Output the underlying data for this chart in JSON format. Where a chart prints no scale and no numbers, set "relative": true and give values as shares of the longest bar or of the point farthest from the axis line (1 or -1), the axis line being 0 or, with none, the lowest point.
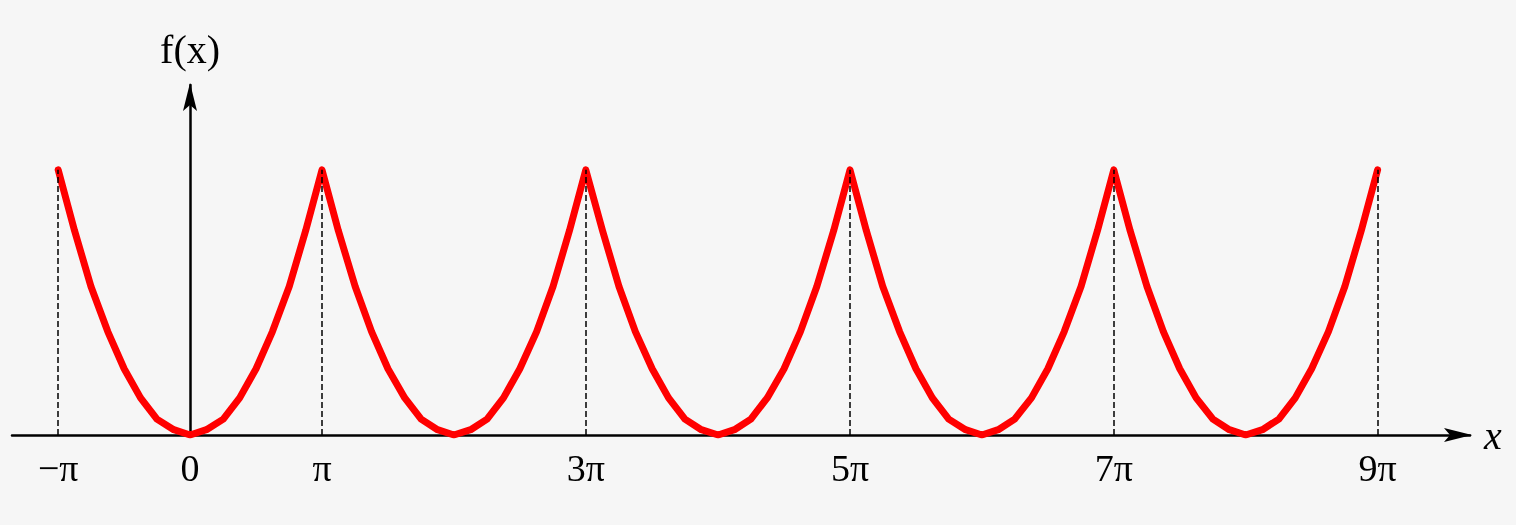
{
  "chart_data": {
    "type": "line",
    "relative": true,
    "xlabel": "x",
    "ylabel": "f(x)",
    "xlim": [
      -4.24,
      30.47
    ],
    "xticks": [
      {
        "value": -3.14,
        "label": "−π"
      },
      0,
      {
        "value": 3.14,
        "label": "π"
      },
      {
        "value": 9.42,
        "label": "3π"
      },
      {
        "value": 15.71,
        "label": "5π"
      },
      {
        "value": 21.99,
        "label": "7π"
      },
      {
        "value": 28.27,
        "label": "9π"
      }
    ],
    "x": [
      -3.14,
      -2.75,
      -2.36,
      -1.96,
      -1.57,
      -1.18,
      -0.79,
      -0.39,
      0,
      0.39,
      0.79,
      1.18,
      1.57,
      1.96,
      2.36,
      2.75,
      3.14,
      3.53,
      3.93,
      4.32,
      4.71,
      5.11,
      5.5,
      5.89,
      6.28,
      6.68,
      7.07,
      7.46,
      7.85,
      8.25,
      8.64,
      9.03,
      9.42,
      9.82,
      10.21,
      10.6,
      11,
      11.39,
      11.78,
      12.17,
      12.57,
      12.96,
      13.35,
      13.74,
      14.14,
      14.53,
      14.92,
      15.32,
      15.71,
      16.1,
      16.49,
      16.89,
      17.28,
      17.67,
      18.06,
      18.46,
      18.85,
      19.24,
      19.63,
      20.03,
      20.42,
      20.81,
      21.21,
      21.6,
      21.99,
      22.38,
      22.78,
      23.17,
      23.56,
      23.95,
      24.35,
      24.74,
      25.13,
      25.53,
      25.92,
      26.31,
      26.7,
      27.1,
      27.49,
      27.88,
      28.27
    ],
    "series": [
      {
        "color": "#ff0000",
        "values": [
          1,
          0.77,
          0.56,
          0.39,
          0.25,
          0.14,
          0.06,
          0.02,
          0,
          0.02,
          0.06,
          0.14,
          0.25,
          0.39,
          0.56,
          0.77,
          1,
          0.77,
          0.56,
          0.39,
          0.25,
          0.14,
          0.06,
          0.02,
          0,
          0.02,
          0.06,
          0.14,
          0.25,
          0.39,
          0.56,
          0.77,
          1,
          0.77,
          0.56,
          0.39,
          0.25,
          0.14,
          0.06,
          0.02,
          0,
          0.02,
          0.06,
          0.14,
          0.25,
          0.39,
          0.56,
          0.77,
          1,
          0.77,
          0.56,
          0.39,
          0.25,
          0.14,
          0.06,
          0.02,
          0,
          0.02,
          0.06,
          0.14,
          0.25,
          0.39,
          0.56,
          0.77,
          1,
          0.77,
          0.56,
          0.39,
          0.25,
          0.14,
          0.06,
          0.02,
          0,
          0.02,
          0.06,
          0.14,
          0.25,
          0.39,
          0.56,
          0.77,
          1
        ]
      }
    ],
    "ref_lines": [
      {
        "axis": "x",
        "value": -3.14,
        "line_style": "dashed",
        "color": "#000000"
      },
      {
        "axis": "x",
        "value": 3.14,
        "line_style": "dashed",
        "color": "#000000"
      },
      {
        "axis": "x",
        "value": 9.42,
        "line_style": "dashed",
        "color": "#000000"
      },
      {
        "axis": "x",
        "value": 15.71,
        "line_style": "dashed",
        "color": "#000000"
      },
      {
        "axis": "x",
        "value": 21.99,
        "line_style": "dashed",
        "color": "#000000"
      },
      {
        "axis": "x",
        "value": 28.27,
        "line_style": "dashed",
        "color": "#000000"
      }
    ],
    "marker": "none",
    "grid": false
  }
}
